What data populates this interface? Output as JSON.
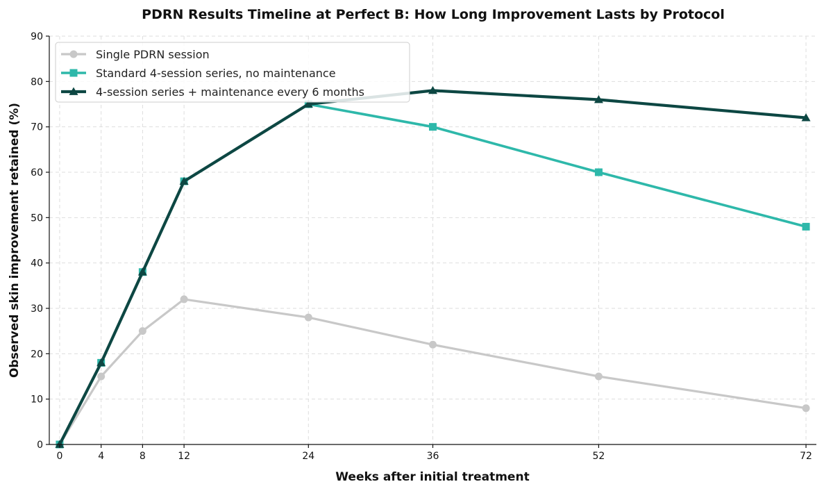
{
  "chart_data": {
    "type": "line",
    "title": "PDRN Results Timeline at Perfect B: How Long Improvement Lasts by Protocol",
    "xlabel": "Weeks after initial treatment",
    "ylabel": "Observed skin improvement retained (%)",
    "x": [
      0,
      4,
      8,
      12,
      24,
      36,
      52,
      72
    ],
    "xticks": [
      "0",
      "4",
      "8",
      "12",
      "24",
      "36",
      "52",
      "72"
    ],
    "xlim": [
      -1,
      73
    ],
    "ylim": [
      0,
      90
    ],
    "yticks": [
      "0",
      "10",
      "20",
      "30",
      "40",
      "50",
      "60",
      "70",
      "80",
      "90"
    ],
    "grid": true,
    "legend_position": "upper-left",
    "series": [
      {
        "name": "Single PDRN session",
        "values": [
          0,
          15,
          25,
          32,
          28,
          22,
          15,
          8
        ],
        "color": "#c8c8c8",
        "marker": "circle"
      },
      {
        "name": "Standard 4-session series, no maintenance",
        "values": [
          0,
          18,
          38,
          58,
          75,
          70,
          60,
          48
        ],
        "color": "#2eb8aa",
        "marker": "square"
      },
      {
        "name": "4-session series + maintenance every 6 months",
        "values": [
          0,
          18,
          38,
          58,
          75,
          78,
          76,
          72
        ],
        "color": "#0d4743",
        "marker": "triangle"
      }
    ]
  }
}
